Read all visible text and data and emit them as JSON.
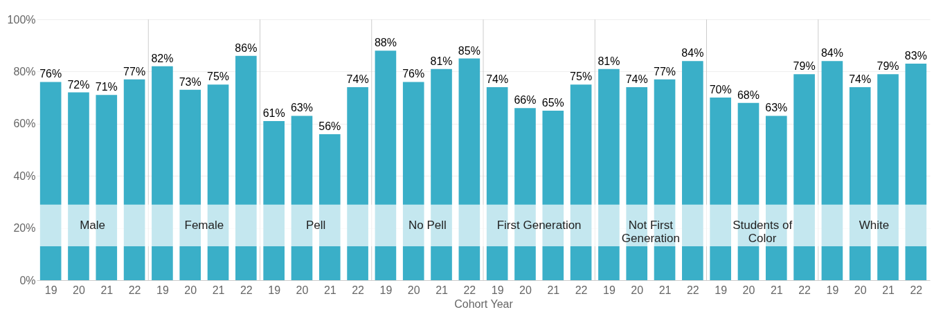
{
  "chart_data": {
    "type": "bar",
    "xlabel": "Cohort Year",
    "categories": [
      "19",
      "20",
      "21",
      "22",
      "19",
      "20",
      "21",
      "22",
      "19",
      "20",
      "21",
      "22",
      "19",
      "20",
      "21",
      "22",
      "19",
      "20",
      "21",
      "22",
      "19",
      "20",
      "21",
      "22",
      "19",
      "20",
      "21",
      "22",
      "19",
      "20",
      "21",
      "22"
    ],
    "values": [
      76,
      72,
      71,
      77,
      82,
      73,
      75,
      86,
      61,
      63,
      56,
      74,
      88,
      76,
      81,
      85,
      74,
      66,
      65,
      75,
      81,
      74,
      77,
      84,
      70,
      68,
      63,
      79,
      84,
      74,
      79,
      83
    ],
    "value_labels": [
      "76%",
      "72%",
      "71%",
      "77%",
      "82%",
      "73%",
      "75%",
      "86%",
      "61%",
      "63%",
      "56%",
      "74%",
      "88%",
      "76%",
      "81%",
      "85%",
      "74%",
      "66%",
      "65%",
      "75%",
      "81%",
      "74%",
      "77%",
      "84%",
      "70%",
      "68%",
      "63%",
      "79%",
      "84%",
      "74%",
      "79%",
      "83%"
    ],
    "color": "#3aafc8",
    "ylim": [
      0,
      100
    ],
    "yticks": [
      {
        "value": 0,
        "label": "0%"
      },
      {
        "value": 20,
        "label": "20%"
      },
      {
        "value": 40,
        "label": "40%"
      },
      {
        "value": 60,
        "label": "60%"
      },
      {
        "value": 80,
        "label": "80%"
      },
      {
        "value": 100,
        "label": "100%"
      }
    ],
    "grid": "y",
    "bands": [
      {
        "axis": "y",
        "from": 13,
        "to": 29,
        "color": "#ffffff"
      }
    ],
    "annotations": [
      "Male",
      "Female",
      "Pell",
      "No Pell",
      "First Generation",
      "Not First\nGeneration",
      "Students of\nColor",
      "White"
    ]
  }
}
